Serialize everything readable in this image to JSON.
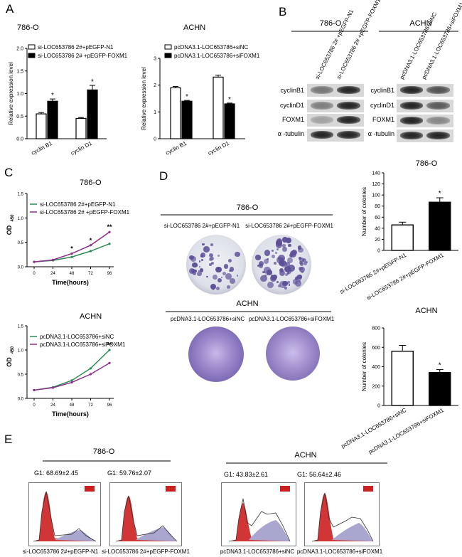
{
  "chart_data": [
    {
      "id": "A1",
      "type": "bar",
      "panel_letter": "A",
      "title": "786-O",
      "ylabel": "Relative expression level",
      "categories": [
        "cyclin B1",
        "cyclin D1"
      ],
      "series": [
        {
          "name": "si-LOC653786 2#+pEGFP-N1",
          "fill": "#ffffff",
          "values": [
            0.55,
            0.45
          ],
          "errors": [
            0.03,
            0.02
          ]
        },
        {
          "name": "si-LOC653786 2# +pEGFP-FOXM1",
          "fill": "#000000",
          "values": [
            0.83,
            1.08
          ],
          "errors": [
            0.05,
            0.1
          ]
        }
      ],
      "ylim": [
        0,
        2.0
      ],
      "yticks": [
        "0.0",
        "0.5",
        "1.0",
        "1.5",
        "2.0"
      ],
      "significance": [
        "*",
        "*"
      ]
    },
    {
      "id": "A2",
      "type": "bar",
      "title": "ACHN",
      "ylabel": "Relative expression level",
      "categories": [
        "cyclin B1",
        "cyclin D1"
      ],
      "series": [
        {
          "name": "pcDNA3.1-LOC653786+siNC",
          "fill": "#ffffff",
          "values": [
            1.9,
            2.3
          ],
          "errors": [
            0.05,
            0.07
          ]
        },
        {
          "name": "pcDNA3.1-LOC653786+siFOXM1",
          "fill": "#000000",
          "values": [
            1.4,
            1.3
          ],
          "errors": [
            0.03,
            0.03
          ]
        }
      ],
      "ylim": [
        0,
        3.0
      ],
      "yticks": [
        "0",
        "1",
        "2",
        "3"
      ],
      "significance": [
        "*",
        "*"
      ]
    },
    {
      "id": "C1",
      "type": "line",
      "panel_letter": "C",
      "title": "786-O",
      "xlabel": "Time(hours)",
      "ylabel": "OD",
      "ylabel_sub": "450",
      "x": [
        0,
        24,
        48,
        72,
        96
      ],
      "series": [
        {
          "name": "si-LOC653786 2#+pEGFP-N1",
          "color": "#2e8b57",
          "values": [
            0.1,
            0.13,
            0.2,
            0.32,
            0.47
          ]
        },
        {
          "name": "si-LOC653786 2# +pEGFP-FOXM1",
          "color": "#8b2f8b",
          "values": [
            0.1,
            0.14,
            0.27,
            0.44,
            0.71
          ]
        }
      ],
      "ylim": [
        0,
        1.5
      ],
      "yticks": [
        "0.0",
        "0.5",
        "1.0",
        "1.5"
      ],
      "xticks": [
        "0",
        "24",
        "48",
        "72",
        "96"
      ],
      "significance": [
        "",
        "",
        "*",
        "*",
        "**"
      ]
    },
    {
      "id": "C2",
      "type": "line",
      "title": "ACHN",
      "xlabel": "Time(hours)",
      "ylabel": "OD",
      "ylabel_sub": "450",
      "x": [
        0,
        24,
        48,
        72,
        96
      ],
      "series": [
        {
          "name": "pcDNA3.1-LOC653786+siNC",
          "color": "#2e8b57",
          "values": [
            0.17,
            0.23,
            0.37,
            0.62,
            1.0
          ]
        },
        {
          "name": "pcDNA3.1-LOC653786+siFOXM1",
          "color": "#8b2f8b",
          "values": [
            0.17,
            0.22,
            0.33,
            0.5,
            0.73
          ]
        }
      ],
      "ylim": [
        0,
        1.5
      ],
      "yticks": [
        "0.0",
        "0.5",
        "1.0",
        "1.5"
      ],
      "xticks": [
        "0",
        "24",
        "48",
        "72",
        "96"
      ],
      "significance": [
        "",
        "",
        "",
        "",
        "**"
      ]
    },
    {
      "id": "D1",
      "type": "bar",
      "title": "786-O",
      "ylabel": "Number of colonies",
      "categories": [
        "si-LOC653786 2#+pEGFP-N1",
        "si-LOC653786 2#+pEGFP-FOXM1"
      ],
      "values": [
        46,
        87
      ],
      "errors": [
        5,
        8
      ],
      "fills": [
        "#ffffff",
        "#000000"
      ],
      "ylim": [
        0,
        140
      ],
      "yticks": [
        "0",
        "20",
        "40",
        "60",
        "80",
        "100",
        "120",
        "140"
      ],
      "significance": [
        "",
        "*"
      ]
    },
    {
      "id": "D2",
      "type": "bar",
      "title": "ACHN",
      "ylabel": "Number of colonies",
      "categories": [
        "pcDNA3.1-LOC653786+siNC",
        "pcDNA3.1-LOC653786+siFOXM1"
      ],
      "values": [
        560,
        340
      ],
      "errors": [
        60,
        30
      ],
      "fills": [
        "#ffffff",
        "#000000"
      ],
      "ylim": [
        0,
        800
      ],
      "yticks": [
        "0",
        "200",
        "400",
        "600",
        "800"
      ],
      "significance": [
        "",
        "*"
      ]
    }
  ],
  "panel_B": {
    "letter": "B",
    "group1": {
      "title": "786-O",
      "lanes": [
        "si-LOC653786 2# +pEGFP-N1",
        "si-LOC653786 2# +pEGFP-FOXM1"
      ],
      "rows": [
        "cyclinB1",
        "cyclinD1",
        "FOXM1",
        "α -tubulin"
      ]
    },
    "group2": {
      "title": "ACHN",
      "lanes": [
        "pcDNA3.1-LOC653786+siNC",
        "pcDNA3.1-LOC653786+siFOXM1"
      ],
      "rows": [
        "cyclinB1",
        "cyclinD1",
        "FOXM1",
        "α -tubulin"
      ]
    }
  },
  "panel_D": {
    "letter": "D",
    "group1": {
      "title": "786-O",
      "left_label": "si-LOC653786 2#+pEGFP-N1",
      "right_label": "si-LOC653786 2#+pEGFP-FOXM1"
    },
    "group2": {
      "title": "ACHN",
      "left_label": "pcDNA3.1-LOC653786+siNC",
      "right_label": "pcDNA3.1-LOC653786+siFOXM1"
    }
  },
  "panel_E": {
    "letter": "E",
    "group1": {
      "title": "786-O",
      "g1_left": "G1:  68.69±2.45",
      "g1_right": "G1:  59.76±2.07",
      "label_left": "si-LOC653786 2#+pEGFP-N1",
      "label_right": "si-LOC653786 2#+pEGFP-FOXM1"
    },
    "group2": {
      "title": "ACHN",
      "g1_left": "G1:  43.83±2.61",
      "g1_right": "G1:  56.64±2.46",
      "label_left": "pcDNA3.1-LOC653786+siNC",
      "label_right": "pcDNA3.1-LOC653786+siFOXM1"
    }
  }
}
